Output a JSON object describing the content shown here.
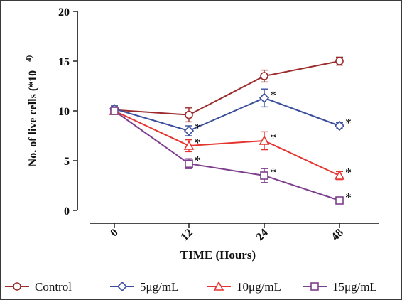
{
  "chart_data": {
    "type": "line",
    "xlabel": "TIME (Hours)",
    "ylabel": "No. of live cells (*10",
    "ylabel_exponent": "4)",
    "x": [
      "0",
      "12",
      "24",
      "48"
    ],
    "ylim": [
      0,
      20
    ],
    "yticks": [
      "0",
      "5",
      "10",
      "15",
      "20"
    ],
    "grid": false,
    "legend_position": "bottom",
    "significance_mark": "*",
    "series": [
      {
        "name": "Control",
        "color": "#9b2c2c",
        "marker": "circle",
        "values": [
          10.1,
          9.6,
          13.5,
          15.0
        ],
        "errors": [
          0.4,
          0.7,
          0.6,
          0.4
        ],
        "significant": [
          false,
          false,
          false,
          false
        ]
      },
      {
        "name": "5μg/mL",
        "color": "#3a4e9e",
        "marker": "diamond",
        "values": [
          10.2,
          8.0,
          11.3,
          8.5
        ],
        "errors": [
          0.3,
          0.5,
          0.9,
          0.3
        ],
        "significant": [
          false,
          true,
          true,
          true
        ]
      },
      {
        "name": "10μg/mL",
        "color": "#e53530",
        "marker": "triangle",
        "values": [
          10.0,
          6.5,
          7.0,
          3.5
        ],
        "errors": [
          0.3,
          0.6,
          0.9,
          0.4
        ],
        "significant": [
          false,
          true,
          true,
          true
        ]
      },
      {
        "name": "15μg/mL",
        "color": "#7e3f8e",
        "marker": "square",
        "values": [
          10.0,
          4.7,
          3.5,
          1.0
        ],
        "errors": [
          0.3,
          0.5,
          0.7,
          0.2
        ],
        "significant": [
          false,
          true,
          true,
          true
        ]
      }
    ]
  }
}
